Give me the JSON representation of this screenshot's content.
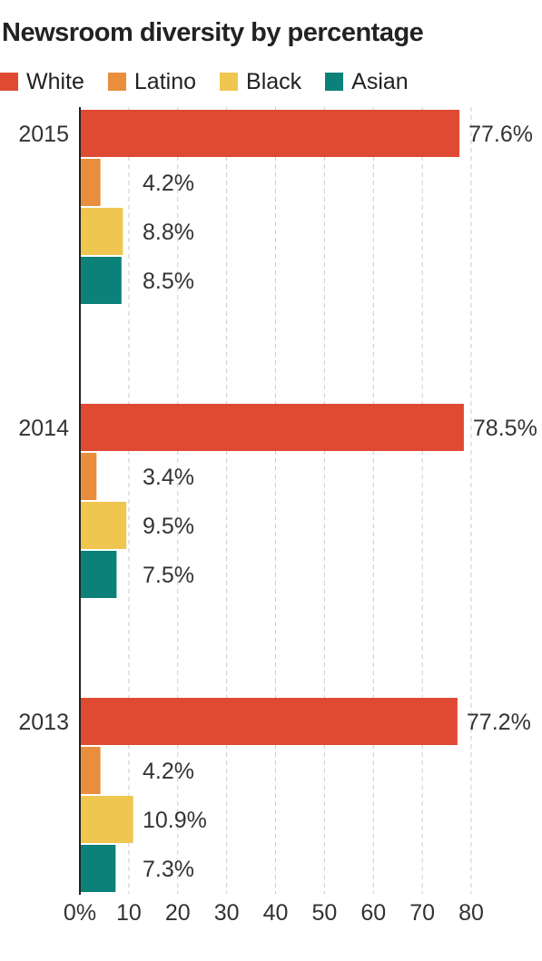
{
  "chart_data": {
    "type": "bar",
    "orientation": "horizontal",
    "title": "Newsroom diversity by percentage",
    "categories": [
      "2015",
      "2014",
      "2013"
    ],
    "series": [
      {
        "name": "White",
        "color": "#e04a32",
        "values": [
          77.6,
          78.5,
          77.2
        ],
        "labels": [
          "77.6%",
          "78.5%",
          "77.2%"
        ]
      },
      {
        "name": "Latino",
        "color": "#e88e3c",
        "values": [
          4.2,
          3.4,
          4.2
        ],
        "labels": [
          "4.2%",
          "3.4%",
          "4.2%"
        ]
      },
      {
        "name": "Black",
        "color": "#efc64f",
        "values": [
          8.8,
          9.5,
          10.9
        ],
        "labels": [
          "8.8%",
          "9.5%",
          "10.9%"
        ]
      },
      {
        "name": "Asian",
        "color": "#0b8179",
        "values": [
          8.5,
          7.5,
          7.3
        ],
        "labels": [
          "8.5%",
          "7.5%",
          "7.3%"
        ]
      }
    ],
    "xticks": [
      "0%",
      "10",
      "20",
      "30",
      "40",
      "50",
      "60",
      "70",
      "80"
    ],
    "xlim": [
      0,
      80
    ],
    "grid": true,
    "legend_position": "top-left"
  },
  "colors": {
    "axis": "#222222",
    "grid": "#cccccc"
  }
}
